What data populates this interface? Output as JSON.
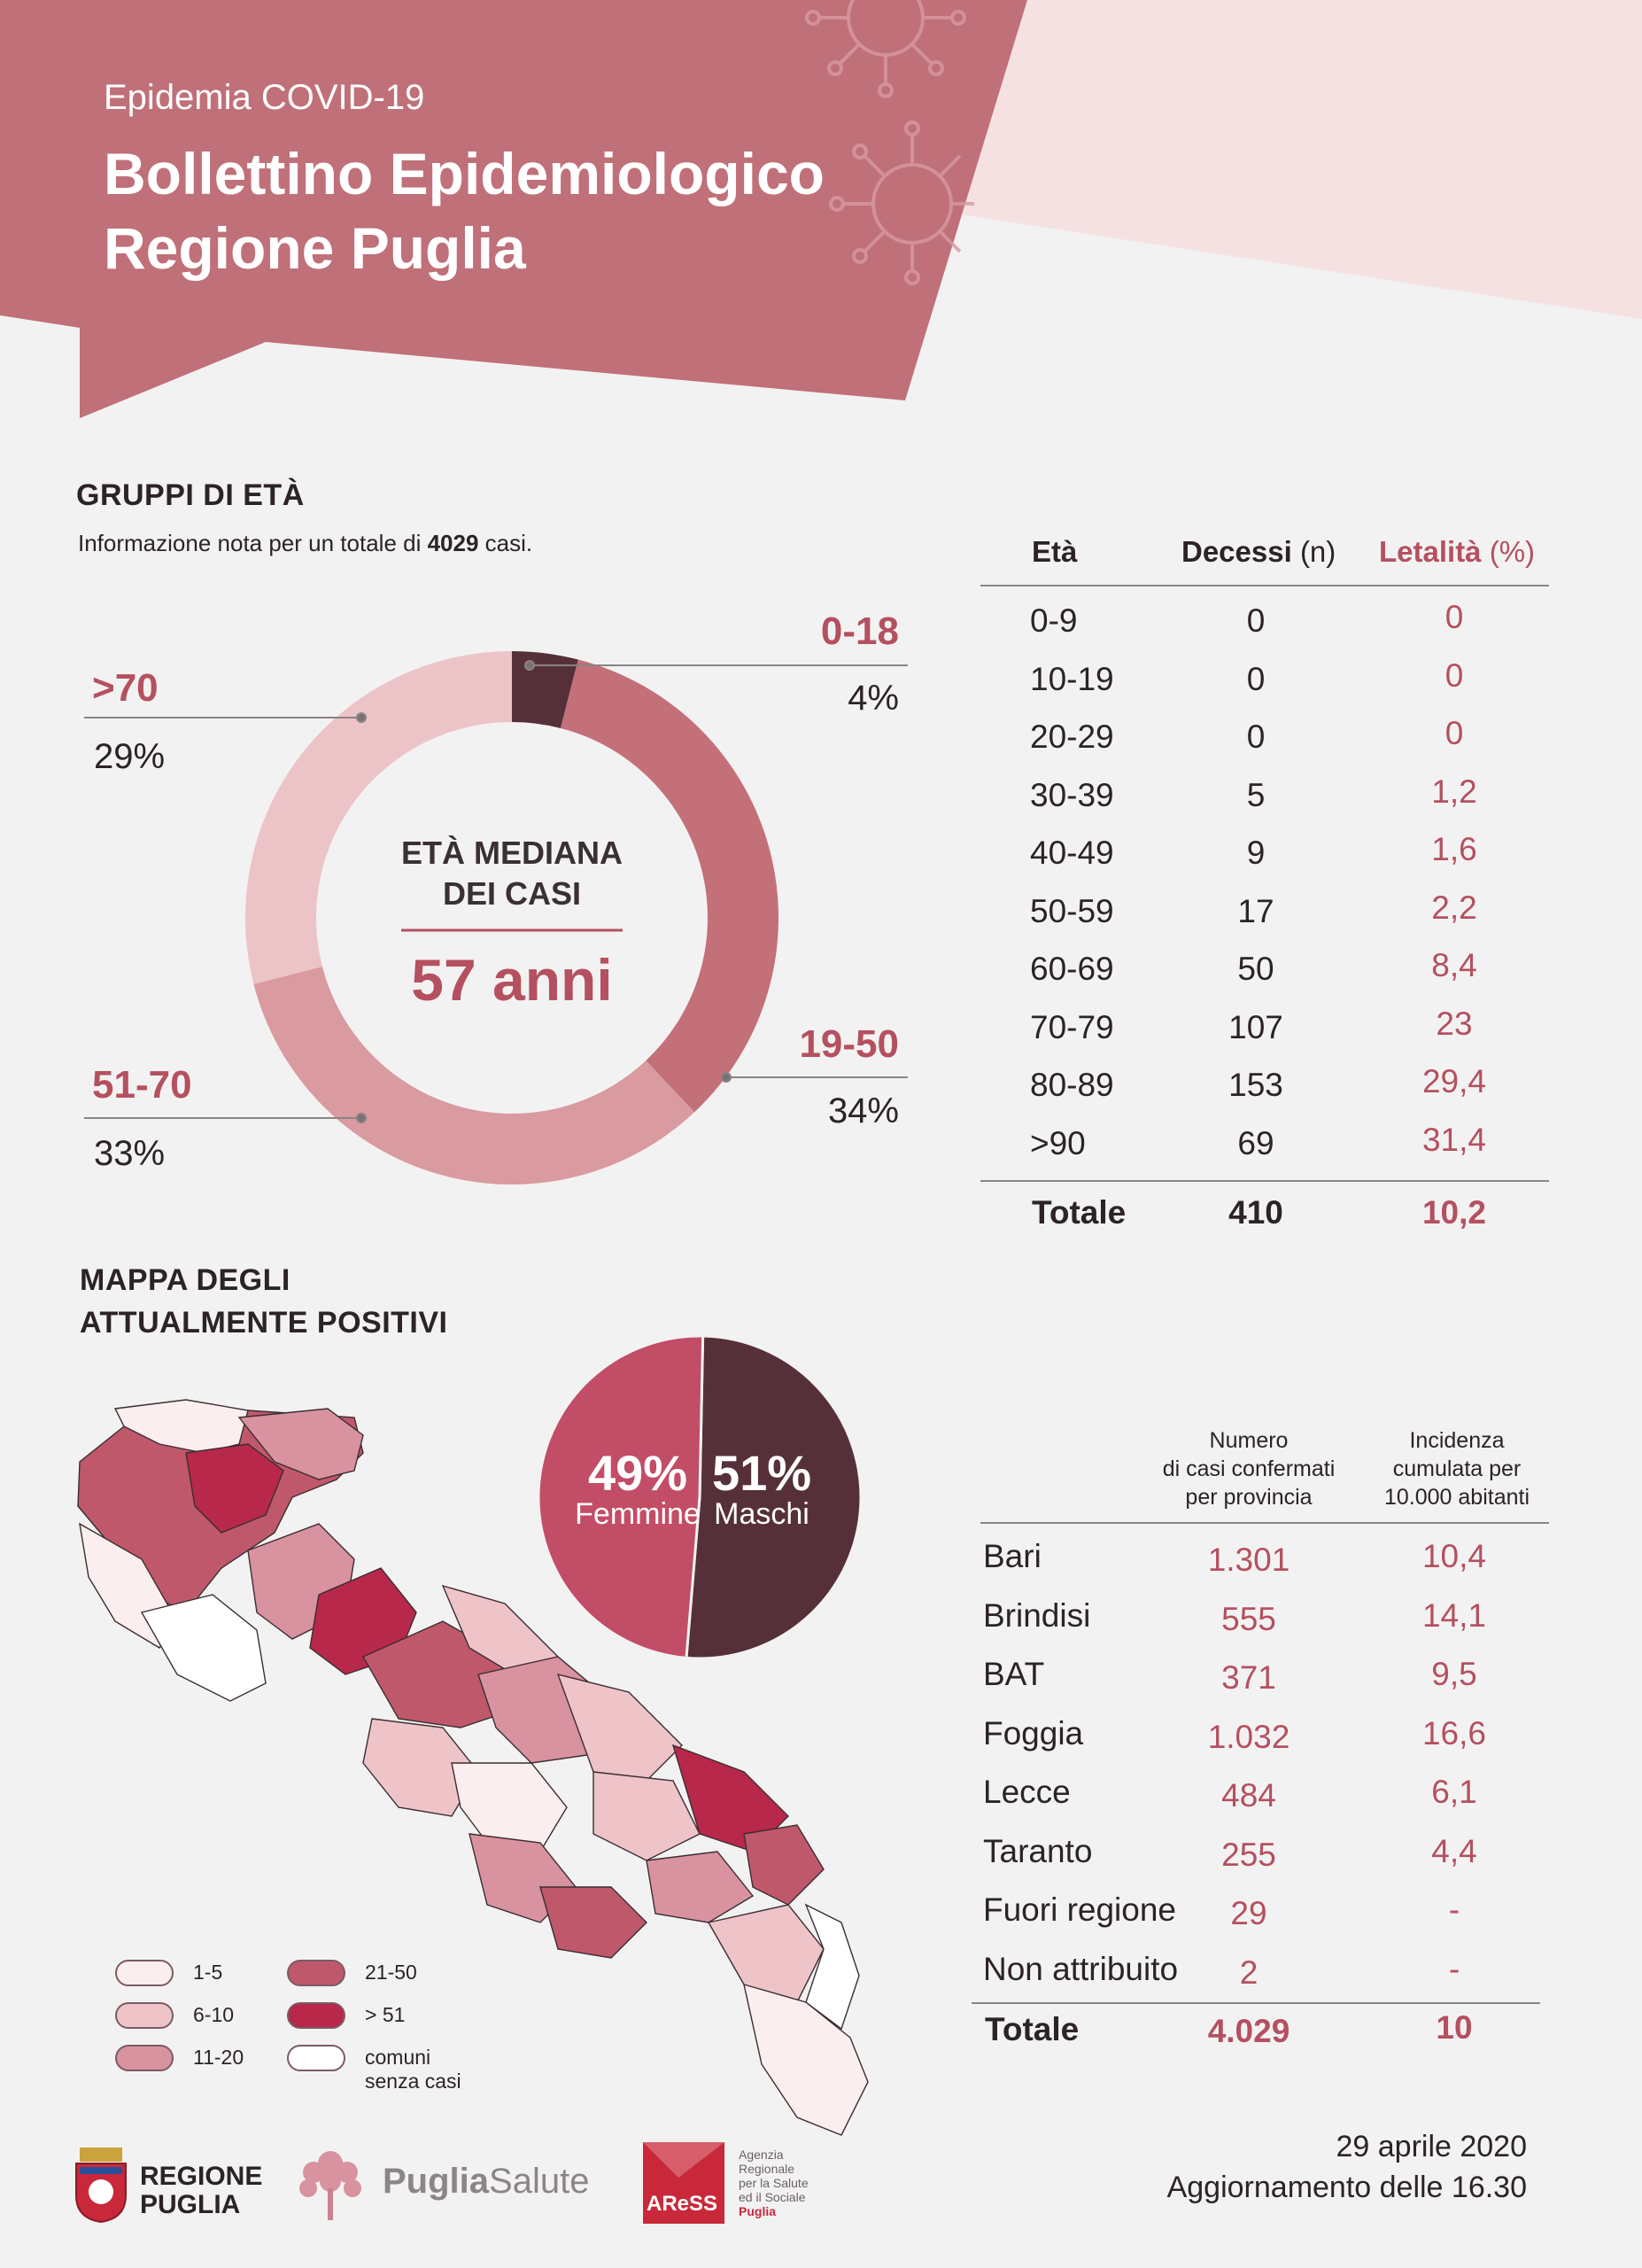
{
  "header": {
    "kicker": "Epidemia COVID-19",
    "title_line1": "Bollettino Epidemiologico",
    "title_line2": "Regione Puglia"
  },
  "age_groups": {
    "heading": "GRUPPI DI ETÀ",
    "subtitle_prefix": "Informazione nota per un totale di ",
    "subtitle_total": "4029",
    "subtitle_suffix": " casi.",
    "center_label_line1": "ETÀ MEDIANA",
    "center_label_line2": "DEI CASI",
    "center_value": "57 anni"
  },
  "mortality_table": {
    "headers": {
      "age": "Età",
      "deaths": "Decessi",
      "deaths_unit": "(n)",
      "lethality": "Letalità",
      "lethality_unit": "(%)"
    },
    "rows": [
      {
        "age": "0-9",
        "deaths": "0",
        "lethality": "0"
      },
      {
        "age": "10-19",
        "deaths": "0",
        "lethality": "0"
      },
      {
        "age": "20-29",
        "deaths": "0",
        "lethality": "0"
      },
      {
        "age": "30-39",
        "deaths": "5",
        "lethality": "1,2"
      },
      {
        "age": "40-49",
        "deaths": "9",
        "lethality": "1,6"
      },
      {
        "age": "50-59",
        "deaths": "17",
        "lethality": "2,2"
      },
      {
        "age": "60-69",
        "deaths": "50",
        "lethality": "8,4"
      },
      {
        "age": "70-79",
        "deaths": "107",
        "lethality": "23"
      },
      {
        "age": "80-89",
        "deaths": "153",
        "lethality": "29,4"
      },
      {
        "age": ">90",
        "deaths": "69",
        "lethality": "31,4"
      }
    ],
    "total": {
      "label": "Totale",
      "deaths": "410",
      "lethality": "10,2"
    }
  },
  "map_section": {
    "heading_line1": "MAPPA DEGLI",
    "heading_line2": "ATTUALMENTE POSITIVI",
    "legend": [
      {
        "label": "1-5",
        "color": "#fbeeee"
      },
      {
        "label": "6-10",
        "color": "#efc4c9"
      },
      {
        "label": "11-20",
        "color": "#d9929f"
      },
      {
        "label": "21-50",
        "color": "#c0586b"
      },
      {
        "label": "> 51",
        "color": "#b8284a"
      },
      {
        "label": "comuni",
        "label2": "senza casi",
        "color": "#ffffff"
      }
    ]
  },
  "province_table": {
    "header_cases": [
      "Numero",
      "di casi confermati",
      "per provincia"
    ],
    "header_incidence": [
      "Incidenza",
      "cumulata per",
      "10.000 abitanti"
    ],
    "rows": [
      {
        "name": "Bari",
        "cases": "1.301",
        "incidence": "10,4"
      },
      {
        "name": "Brindisi",
        "cases": "555",
        "incidence": "14,1"
      },
      {
        "name": "BAT",
        "cases": "371",
        "incidence": "9,5"
      },
      {
        "name": "Foggia",
        "cases": "1.032",
        "incidence": "16,6"
      },
      {
        "name": "Lecce",
        "cases": "484",
        "incidence": "6,1"
      },
      {
        "name": "Taranto",
        "cases": "255",
        "incidence": "4,4"
      },
      {
        "name": "Fuori regione",
        "cases": "29",
        "incidence": "-"
      },
      {
        "name": "Non attribuito",
        "cases": "2",
        "incidence": "-"
      }
    ],
    "total": {
      "label": "Totale",
      "cases": "4.029",
      "incidence": "10"
    }
  },
  "footer": {
    "regione_line1": "REGIONE",
    "regione_line2": "PUGLIA",
    "puglia": "Puglia",
    "salute": "Salute",
    "aress_logo_text": "AReSS",
    "aress_desc": [
      "Agenzia",
      "Regionale",
      "per la Salute",
      "ed il Sociale",
      "Puglia"
    ],
    "date": "29 aprile 2020",
    "update": "Aggiornamento delle 16.30"
  },
  "colors": {
    "banner": "#c07078",
    "accent": "#b4505f",
    "dark": "#563039",
    "background": "#f3f2f2"
  },
  "chart_data": [
    {
      "type": "pie",
      "subtype": "donut",
      "title": "GRUPPI DI ETÀ",
      "categories": [
        "0-18",
        "19-50",
        "51-70",
        ">70"
      ],
      "values": [
        4,
        34,
        33,
        29
      ],
      "value_labels": [
        "4%",
        "34%",
        "33%",
        "29%"
      ],
      "colors": [
        "#563039",
        "#c37079",
        "#d99aa0",
        "#ecc4c7"
      ],
      "unit": "%"
    },
    {
      "type": "pie",
      "categories": [
        "Femmine",
        "Maschi"
      ],
      "values": [
        49,
        51
      ],
      "value_labels": [
        "49%",
        "51%"
      ],
      "colors": [
        "#c24d66",
        "#563039"
      ],
      "unit": "%"
    }
  ]
}
